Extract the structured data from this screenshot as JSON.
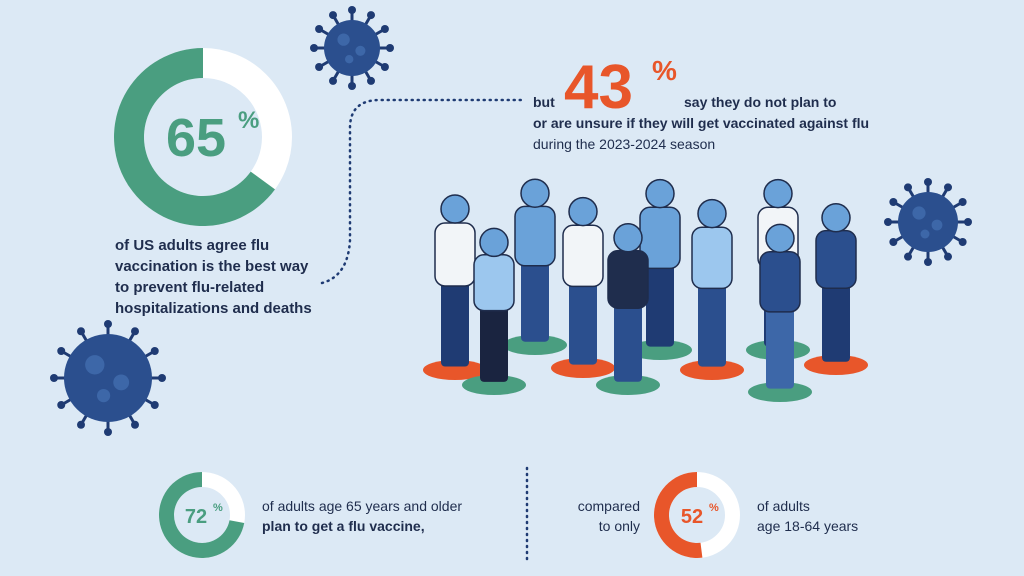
{
  "main_stat": {
    "value": 65,
    "unit": "%",
    "caption": [
      "of US adults agree flu",
      "vaccination is the best way",
      "to prevent flu-related",
      "hospitalizations and deaths"
    ]
  },
  "highlight": {
    "prefix": "but",
    "value": 43,
    "unit": "%",
    "lines": [
      "say they do not plan to",
      "or are unsure if they will get vaccinated against flu",
      "during the 2023-2024 season"
    ]
  },
  "older_adults": {
    "value": 72,
    "unit": "%",
    "lines": [
      "of adults age 65 years and older",
      "plan to get a flu vaccine,"
    ]
  },
  "comparison": {
    "lines": [
      "compared",
      "to only"
    ]
  },
  "younger_adults": {
    "value": 52,
    "unit": "%",
    "lines": [
      "of adults",
      "age 18-64 years"
    ]
  }
}
